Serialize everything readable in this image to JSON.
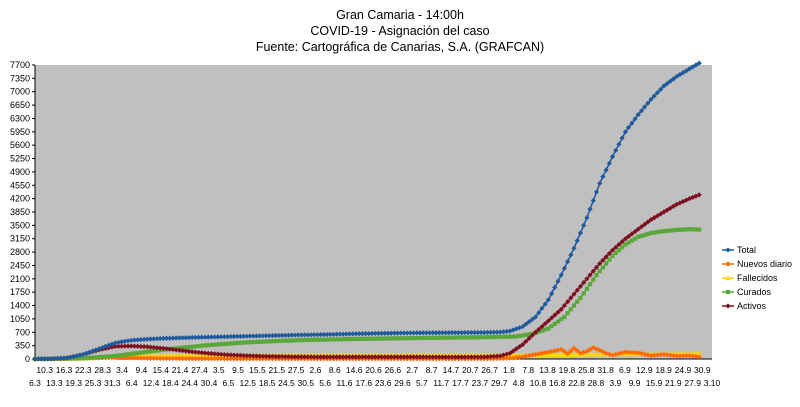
{
  "chart_data": {
    "type": "line",
    "title": "Gran Camaria - 14:00h",
    "subtitle": "COVID-19 - Asignación del caso",
    "source": "Fuente: Cartográfica de Canarias, S.A. (GRAFCAN)",
    "ylim": [
      0,
      7700
    ],
    "yticks": [
      0,
      350,
      700,
      1050,
      1400,
      1750,
      2100,
      2450,
      2800,
      3150,
      3500,
      3850,
      4200,
      4550,
      4900,
      5250,
      5600,
      5950,
      6300,
      6650,
      7000,
      7350,
      7700
    ],
    "x_tick_labels_row1": [
      "10.3",
      "16.3",
      "22.3",
      "28.3",
      "3.4",
      "9.4",
      "15.4",
      "21.4",
      "27.4",
      "3.5",
      "9.5",
      "15.5",
      "21.5",
      "27.5",
      "2.6",
      "8.6",
      "14.6",
      "20.6",
      "26.6",
      "2.7",
      "8.7",
      "14.7",
      "20.7",
      "26.7",
      "1.8",
      "7.8",
      "13.8",
      "19.8",
      "25.8",
      "31.8",
      "6.9",
      "12.9",
      "18.9",
      "24.9",
      "30.9"
    ],
    "x_tick_labels_row2": [
      "6.3",
      "13.3",
      "19.3",
      "25.3",
      "31.3",
      "6.4",
      "12.4",
      "18.4",
      "24.4",
      "30.4",
      "6.5",
      "12.5",
      "18.5",
      "24.5",
      "30.5",
      "5.6",
      "11.6",
      "17.6",
      "23.6",
      "29.6",
      "5.7",
      "11.7",
      "17.7",
      "23.7",
      "29.7",
      "4.8",
      "10.8",
      "16.8",
      "22.8",
      "28.8",
      "3.9",
      "9.9",
      "15.9",
      "21.9",
      "27.9",
      "3.10"
    ],
    "legend_position": "right",
    "grid": false,
    "background_color": "#c0c0c0",
    "x_days": 211,
    "series": [
      {
        "name": "Total",
        "color": "#1f5a9e",
        "marker": "diamond",
        "points": [
          [
            0,
            0
          ],
          [
            5,
            5
          ],
          [
            10,
            30
          ],
          [
            15,
            120
          ],
          [
            20,
            270
          ],
          [
            25,
            420
          ],
          [
            30,
            490
          ],
          [
            35,
            520
          ],
          [
            40,
            540
          ],
          [
            50,
            565
          ],
          [
            60,
            585
          ],
          [
            70,
            605
          ],
          [
            80,
            625
          ],
          [
            90,
            640
          ],
          [
            100,
            660
          ],
          [
            110,
            675
          ],
          [
            120,
            685
          ],
          [
            130,
            690
          ],
          [
            140,
            695
          ],
          [
            145,
            705
          ],
          [
            148,
            730
          ],
          [
            152,
            850
          ],
          [
            156,
            1100
          ],
          [
            160,
            1550
          ],
          [
            164,
            2200
          ],
          [
            168,
            2900
          ],
          [
            172,
            3700
          ],
          [
            176,
            4600
          ],
          [
            180,
            5300
          ],
          [
            184,
            5950
          ],
          [
            188,
            6400
          ],
          [
            192,
            6800
          ],
          [
            196,
            7150
          ],
          [
            200,
            7400
          ],
          [
            204,
            7600
          ],
          [
            207,
            7750
          ]
        ]
      },
      {
        "name": "Nuevos diario",
        "color": "#ff6a00",
        "marker": "diamond",
        "points": [
          [
            0,
            0
          ],
          [
            15,
            20
          ],
          [
            25,
            40
          ],
          [
            35,
            20
          ],
          [
            50,
            10
          ],
          [
            70,
            5
          ],
          [
            100,
            5
          ],
          [
            140,
            5
          ],
          [
            148,
            20
          ],
          [
            152,
            60
          ],
          [
            156,
            120
          ],
          [
            160,
            180
          ],
          [
            164,
            250
          ],
          [
            166,
            140
          ],
          [
            168,
            280
          ],
          [
            170,
            150
          ],
          [
            172,
            200
          ],
          [
            174,
            300
          ],
          [
            176,
            230
          ],
          [
            178,
            150
          ],
          [
            180,
            100
          ],
          [
            184,
            180
          ],
          [
            188,
            160
          ],
          [
            192,
            90
          ],
          [
            196,
            120
          ],
          [
            200,
            80
          ],
          [
            204,
            90
          ],
          [
            207,
            60
          ]
        ]
      },
      {
        "name": "Fallecidos",
        "color": "#ffd700",
        "marker": "triangle",
        "points": [
          [
            0,
            0
          ],
          [
            10,
            5
          ],
          [
            20,
            30
          ],
          [
            30,
            70
          ],
          [
            40,
            90
          ],
          [
            60,
            100
          ],
          [
            80,
            100
          ],
          [
            100,
            100
          ],
          [
            120,
            102
          ],
          [
            140,
            102
          ],
          [
            150,
            103
          ],
          [
            160,
            108
          ],
          [
            170,
            115
          ],
          [
            180,
            125
          ],
          [
            190,
            133
          ],
          [
            200,
            140
          ],
          [
            207,
            145
          ]
        ]
      },
      {
        "name": "Curados",
        "color": "#5aa83a",
        "marker": "square",
        "points": [
          [
            0,
            0
          ],
          [
            15,
            20
          ],
          [
            25,
            80
          ],
          [
            35,
            190
          ],
          [
            45,
            290
          ],
          [
            55,
            370
          ],
          [
            65,
            430
          ],
          [
            75,
            470
          ],
          [
            85,
            500
          ],
          [
            100,
            525
          ],
          [
            120,
            550
          ],
          [
            140,
            570
          ],
          [
            150,
            590
          ],
          [
            155,
            660
          ],
          [
            160,
            800
          ],
          [
            165,
            1100
          ],
          [
            170,
            1600
          ],
          [
            175,
            2200
          ],
          [
            180,
            2700
          ],
          [
            184,
            3000
          ],
          [
            188,
            3200
          ],
          [
            192,
            3300
          ],
          [
            196,
            3350
          ],
          [
            200,
            3380
          ],
          [
            204,
            3400
          ],
          [
            207,
            3390
          ]
        ]
      },
      {
        "name": "Activos",
        "color": "#7d1020",
        "marker": "diamond",
        "points": [
          [
            0,
            0
          ],
          [
            5,
            5
          ],
          [
            10,
            30
          ],
          [
            15,
            120
          ],
          [
            20,
            240
          ],
          [
            25,
            330
          ],
          [
            30,
            340
          ],
          [
            35,
            320
          ],
          [
            40,
            280
          ],
          [
            45,
            230
          ],
          [
            50,
            180
          ],
          [
            55,
            140
          ],
          [
            60,
            110
          ],
          [
            65,
            90
          ],
          [
            70,
            75
          ],
          [
            80,
            60
          ],
          [
            90,
            55
          ],
          [
            100,
            55
          ],
          [
            110,
            55
          ],
          [
            120,
            55
          ],
          [
            130,
            52
          ],
          [
            140,
            55
          ],
          [
            145,
            80
          ],
          [
            148,
            150
          ],
          [
            152,
            380
          ],
          [
            156,
            700
          ],
          [
            160,
            1000
          ],
          [
            164,
            1300
          ],
          [
            168,
            1700
          ],
          [
            172,
            2100
          ],
          [
            176,
            2500
          ],
          [
            180,
            2850
          ],
          [
            184,
            3150
          ],
          [
            188,
            3400
          ],
          [
            192,
            3650
          ],
          [
            196,
            3850
          ],
          [
            200,
            4050
          ],
          [
            204,
            4200
          ],
          [
            207,
            4300
          ]
        ]
      }
    ]
  }
}
